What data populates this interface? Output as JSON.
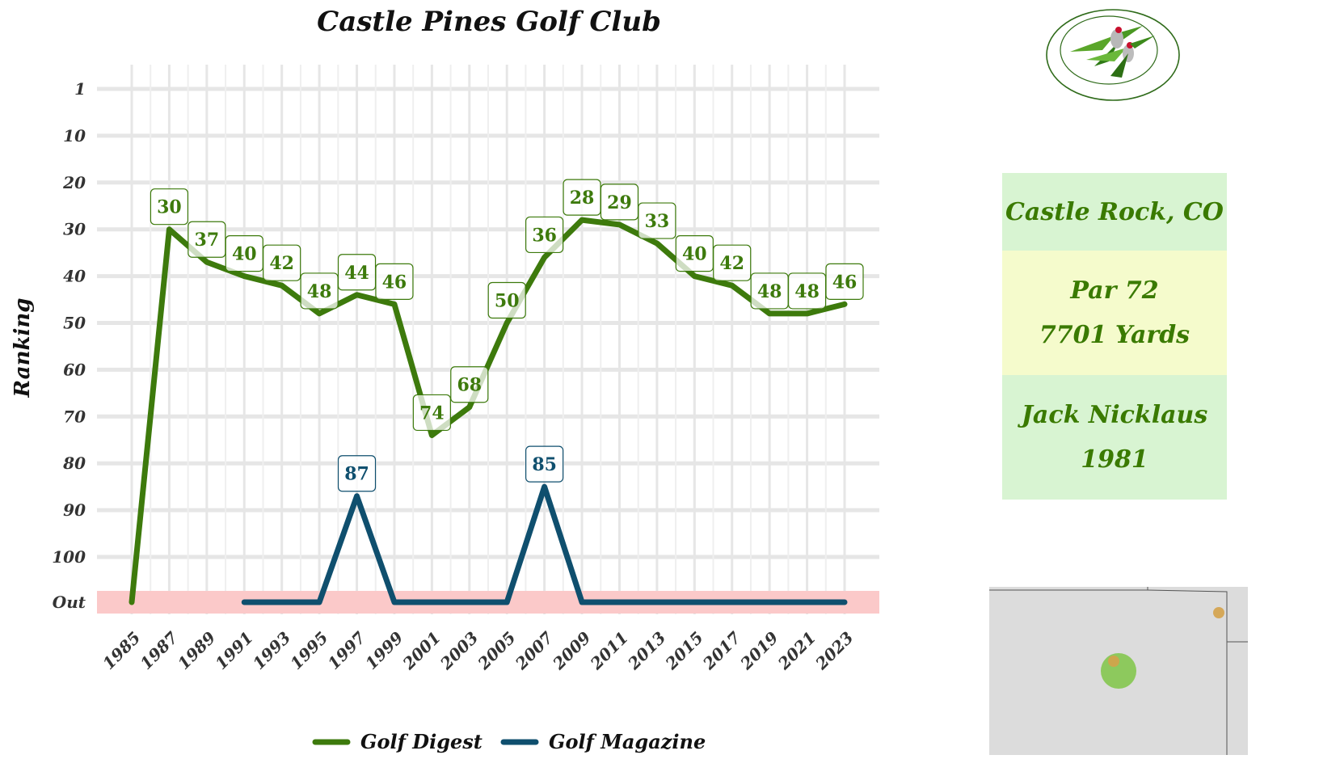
{
  "chart_data": {
    "type": "line",
    "title": "Castle Pines Golf Club",
    "ylabel": "Ranking",
    "xlabel": "",
    "x_ticks": [
      "1985",
      "1987",
      "1989",
      "1991",
      "1993",
      "1995",
      "1997",
      "1999",
      "2001",
      "2003",
      "2005",
      "2007",
      "2009",
      "2011",
      "2013",
      "2015",
      "2017",
      "2019",
      "2021",
      "2023"
    ],
    "y_ticks": [
      "1",
      "10",
      "20",
      "30",
      "40",
      "50",
      "60",
      "70",
      "80",
      "90",
      "100",
      "Out"
    ],
    "y_reversed": true,
    "out_band_color": "#fbc9c9",
    "grid": true,
    "legend_position": "bottom",
    "series": [
      {
        "name": "Golf Digest",
        "color": "#3d7a0c",
        "points": [
          {
            "x": 1985,
            "y": "Out"
          },
          {
            "x": 1987,
            "y": 30,
            "label": "30"
          },
          {
            "x": 1989,
            "y": 37,
            "label": "37"
          },
          {
            "x": 1991,
            "y": 40,
            "label": "40"
          },
          {
            "x": 1993,
            "y": 42,
            "label": "42"
          },
          {
            "x": 1995,
            "y": 48,
            "label": "48"
          },
          {
            "x": 1997,
            "y": 44,
            "label": "44"
          },
          {
            "x": 1999,
            "y": 46,
            "label": "46"
          },
          {
            "x": 2001,
            "y": 74,
            "label": "74"
          },
          {
            "x": 2003,
            "y": 68,
            "label": "68"
          },
          {
            "x": 2005,
            "y": 50,
            "label": "50"
          },
          {
            "x": 2007,
            "y": 36,
            "label": "36"
          },
          {
            "x": 2009,
            "y": 28,
            "label": "28"
          },
          {
            "x": 2011,
            "y": 29,
            "label": "29"
          },
          {
            "x": 2013,
            "y": 33,
            "label": "33"
          },
          {
            "x": 2015,
            "y": 40,
            "label": "40"
          },
          {
            "x": 2017,
            "y": 42,
            "label": "42"
          },
          {
            "x": 2019,
            "y": 48,
            "label": "48"
          },
          {
            "x": 2021,
            "y": 48,
            "label": "48"
          },
          {
            "x": 2023,
            "y": 46,
            "label": "46"
          }
        ]
      },
      {
        "name": "Golf Magazine",
        "color": "#0f4f6e",
        "points": [
          {
            "x": 1991,
            "y": "Out"
          },
          {
            "x": 1993,
            "y": "Out"
          },
          {
            "x": 1995,
            "y": "Out"
          },
          {
            "x": 1997,
            "y": 87,
            "label": "87"
          },
          {
            "x": 1999,
            "y": "Out"
          },
          {
            "x": 2001,
            "y": "Out"
          },
          {
            "x": 2003,
            "y": "Out"
          },
          {
            "x": 2005,
            "y": "Out"
          },
          {
            "x": 2007,
            "y": 85,
            "label": "85"
          },
          {
            "x": 2009,
            "y": "Out"
          },
          {
            "x": 2011,
            "y": "Out"
          },
          {
            "x": 2013,
            "y": "Out"
          },
          {
            "x": 2015,
            "y": "Out"
          },
          {
            "x": 2017,
            "y": "Out"
          },
          {
            "x": 2019,
            "y": "Out"
          },
          {
            "x": 2021,
            "y": "Out"
          },
          {
            "x": 2023,
            "y": "Out"
          }
        ]
      }
    ]
  },
  "info": {
    "location": "Castle Rock, CO",
    "par": "Par 72",
    "yards": "7701 Yards",
    "architect": "Jack Nicklaus",
    "year": "1981",
    "colors": {
      "location_bg": "#d8f4d2",
      "course_bg": "#f5fbcc",
      "architect_bg": "#d8f4d2",
      "text": "#3a7a00"
    }
  },
  "logo": {
    "icon": "hummingbird-logo-icon"
  },
  "map": {
    "icon": "state-map-icon",
    "marker_colors": [
      "#7fc646",
      "#d4a24a"
    ]
  }
}
